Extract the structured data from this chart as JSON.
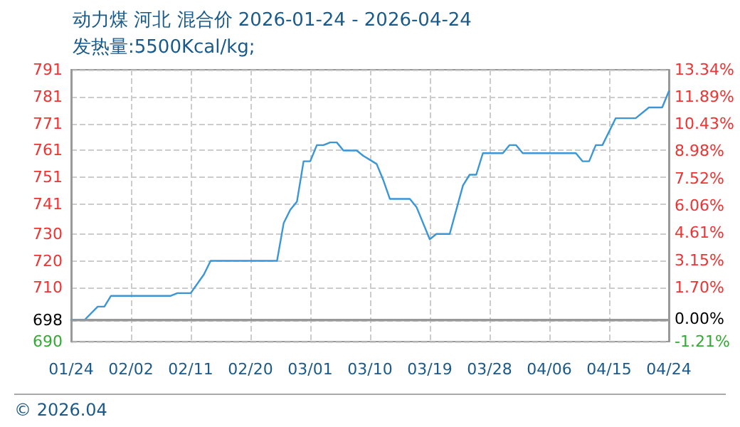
{
  "chart_data": {
    "type": "line",
    "title": "动力煤 河北 混合价 2026-01-24 - 2026-04-24",
    "subtitle": "发热量:5500Kcal/kg;",
    "annotations": [
      "© 2026.04"
    ],
    "x": [
      "2026-01-24",
      "2026-01-26",
      "2026-01-28",
      "2026-01-29",
      "2026-01-30",
      "2026-02-08",
      "2026-02-09",
      "2026-02-11",
      "2026-02-13",
      "2026-02-14",
      "2026-02-24",
      "2026-02-25",
      "2026-02-26",
      "2026-02-27",
      "2026-02-28",
      "2026-03-01",
      "2026-03-02",
      "2026-03-03",
      "2026-03-04",
      "2026-03-05",
      "2026-03-06",
      "2026-03-08",
      "2026-03-09",
      "2026-03-11",
      "2026-03-12",
      "2026-03-13",
      "2026-03-16",
      "2026-03-17",
      "2026-03-19",
      "2026-03-20",
      "2026-03-22",
      "2026-03-24",
      "2026-03-25",
      "2026-03-26",
      "2026-03-27",
      "2026-03-30",
      "2026-03-31",
      "2026-04-01",
      "2026-04-02",
      "2026-04-10",
      "2026-04-11",
      "2026-04-12",
      "2026-04-13",
      "2026-04-14",
      "2026-04-16",
      "2026-04-19",
      "2026-04-21",
      "2026-04-23",
      "2026-04-24"
    ],
    "series": [
      {
        "color": "#3a96d6",
        "values": [
          698,
          698,
          703,
          703,
          707,
          707,
          708,
          708,
          715,
          720,
          720,
          734,
          739,
          742,
          757,
          757,
          763,
          763,
          764,
          764,
          761,
          761,
          759,
          756,
          750,
          743,
          743,
          740,
          728,
          730,
          730,
          748,
          752,
          752,
          760,
          760,
          763,
          763,
          760,
          760,
          757,
          757,
          763,
          763,
          773,
          773,
          777,
          777,
          783
        ]
      }
    ],
    "xlim": [
      "2026-01-24",
      "2026-04-24"
    ],
    "xticks": [
      {
        "value": "2026-01-24",
        "label": "01/24"
      },
      {
        "value": "2026-02-02",
        "label": "02/02"
      },
      {
        "value": "2026-02-11",
        "label": "02/11"
      },
      {
        "value": "2026-02-20",
        "label": "02/20"
      },
      {
        "value": "2026-03-01",
        "label": "03/01"
      },
      {
        "value": "2026-03-10",
        "label": "03/10"
      },
      {
        "value": "2026-03-19",
        "label": "03/19"
      },
      {
        "value": "2026-03-28",
        "label": "03/28"
      },
      {
        "value": "2026-04-06",
        "label": "04/06"
      },
      {
        "value": "2026-04-15",
        "label": "04/15"
      },
      {
        "value": "2026-04-24",
        "label": "04/24"
      }
    ],
    "ylim": [
      690,
      791
    ],
    "yticks": [
      690,
      698,
      710,
      720,
      730,
      741,
      751,
      761,
      771,
      781,
      791
    ],
    "y2lim": [
      -1.21,
      13.34
    ],
    "y2ticks": [
      {
        "value": -1.21,
        "label": "-1.21%"
      },
      {
        "value": 0,
        "label": "0.00%"
      },
      {
        "value": 1.7,
        "label": "1.70%"
      },
      {
        "value": 3.15,
        "label": "3.15%"
      },
      {
        "value": 4.61,
        "label": "4.61%"
      },
      {
        "value": 6.06,
        "label": "6.06%"
      },
      {
        "value": 7.52,
        "label": "7.52%"
      },
      {
        "value": 8.98,
        "label": "8.98%"
      },
      {
        "value": 10.43,
        "label": "10.43%"
      },
      {
        "value": 11.89,
        "label": "11.89%"
      },
      {
        "value": 13.34,
        "label": "13.34%"
      }
    ],
    "ref_lines": [
      {
        "axis": "y",
        "value": 698,
        "color": "#999999",
        "line_style": "solid"
      }
    ],
    "grid": true,
    "marker": "none",
    "line_style": "solid"
  }
}
